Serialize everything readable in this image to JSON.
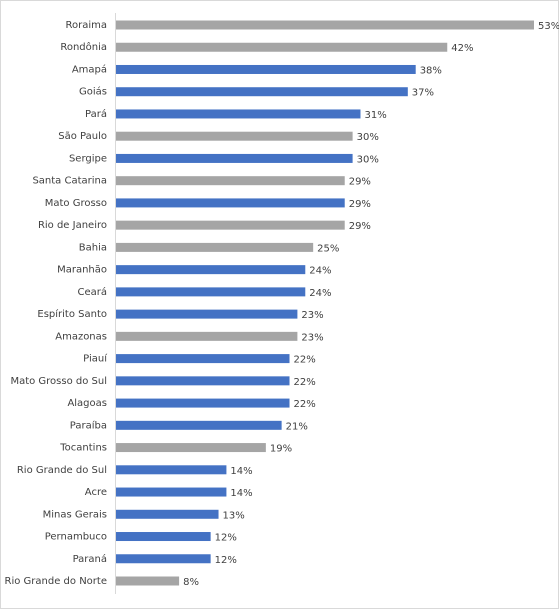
{
  "chart_data": {
    "type": "bar",
    "orientation": "horizontal",
    "categories": [
      "Roraima",
      "Rondônia",
      "Amapá",
      "Goiás",
      "Pará",
      "São Paulo",
      "Sergipe",
      "Santa Catarina",
      "Mato Grosso",
      "Rio de Janeiro",
      "Bahia",
      "Maranhão",
      "Ceará",
      "Espírito Santo",
      "Amazonas",
      "Piauí",
      "Mato Grosso do Sul",
      "Alagoas",
      "Paraíba",
      "Tocantins",
      "Rio Grande do Sul",
      "Acre",
      "Minas Gerais",
      "Pernambuco",
      "Paraná",
      "Rio Grande do Norte"
    ],
    "values": [
      53,
      42,
      38,
      37,
      31,
      30,
      30,
      29,
      29,
      29,
      25,
      24,
      24,
      23,
      23,
      22,
      22,
      22,
      21,
      19,
      14,
      14,
      13,
      12,
      12,
      8
    ],
    "value_labels": [
      "53%",
      "42%",
      "38%",
      "37%",
      "31%",
      "30%",
      "30%",
      "29%",
      "29%",
      "29%",
      "25%",
      "24%",
      "24%",
      "23%",
      "23%",
      "22%",
      "22%",
      "22%",
      "21%",
      "19%",
      "14%",
      "14%",
      "13%",
      "12%",
      "12%",
      "8%"
    ],
    "colors": [
      "#a5a5a5",
      "#a5a5a5",
      "#4472c4",
      "#4472c4",
      "#4472c4",
      "#a5a5a5",
      "#4472c4",
      "#a5a5a5",
      "#4472c4",
      "#a5a5a5",
      "#a5a5a5",
      "#4472c4",
      "#4472c4",
      "#4472c4",
      "#a5a5a5",
      "#4472c4",
      "#4472c4",
      "#4472c4",
      "#4472c4",
      "#a5a5a5",
      "#4472c4",
      "#4472c4",
      "#4472c4",
      "#4472c4",
      "#4472c4",
      "#a5a5a5"
    ]
  }
}
